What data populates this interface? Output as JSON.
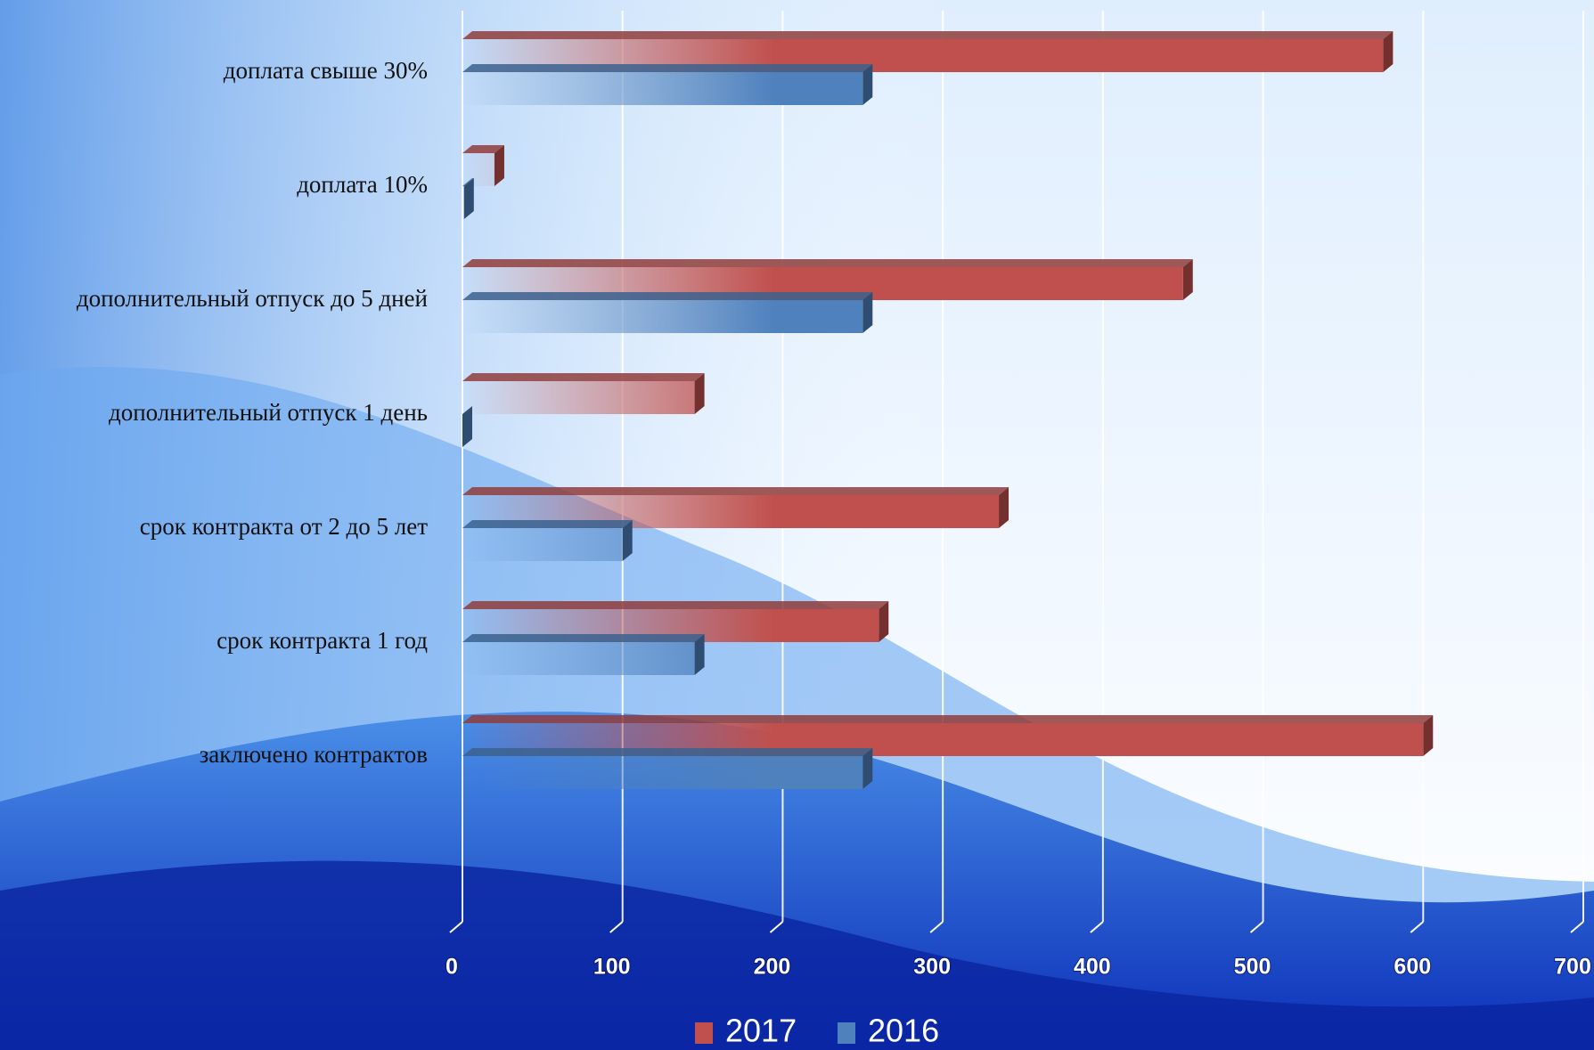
{
  "chart_data": {
    "type": "bar3d",
    "categories": [
      "доплата свыше 30%",
      "доплата 10%",
      "дополнительный отпуск до 5 дней",
      "дополнительный отпуск 1 день",
      "срок контракта от 2 до 5 лет",
      "срок контракта 1 год",
      "заключено контрактов"
    ],
    "series": [
      {
        "name": "2017",
        "color": "#c0504d",
        "values": [
          575,
          20,
          450,
          145,
          335,
          260,
          600
        ]
      },
      {
        "name": "2016",
        "color": "#4f81bd",
        "values": [
          250,
          1,
          250,
          0,
          100,
          145,
          250
        ]
      }
    ],
    "xlim": [
      0,
      700
    ],
    "xticks": [
      0,
      100,
      200,
      300,
      400,
      500,
      600,
      700
    ],
    "grid": true,
    "legend": "bottom"
  }
}
